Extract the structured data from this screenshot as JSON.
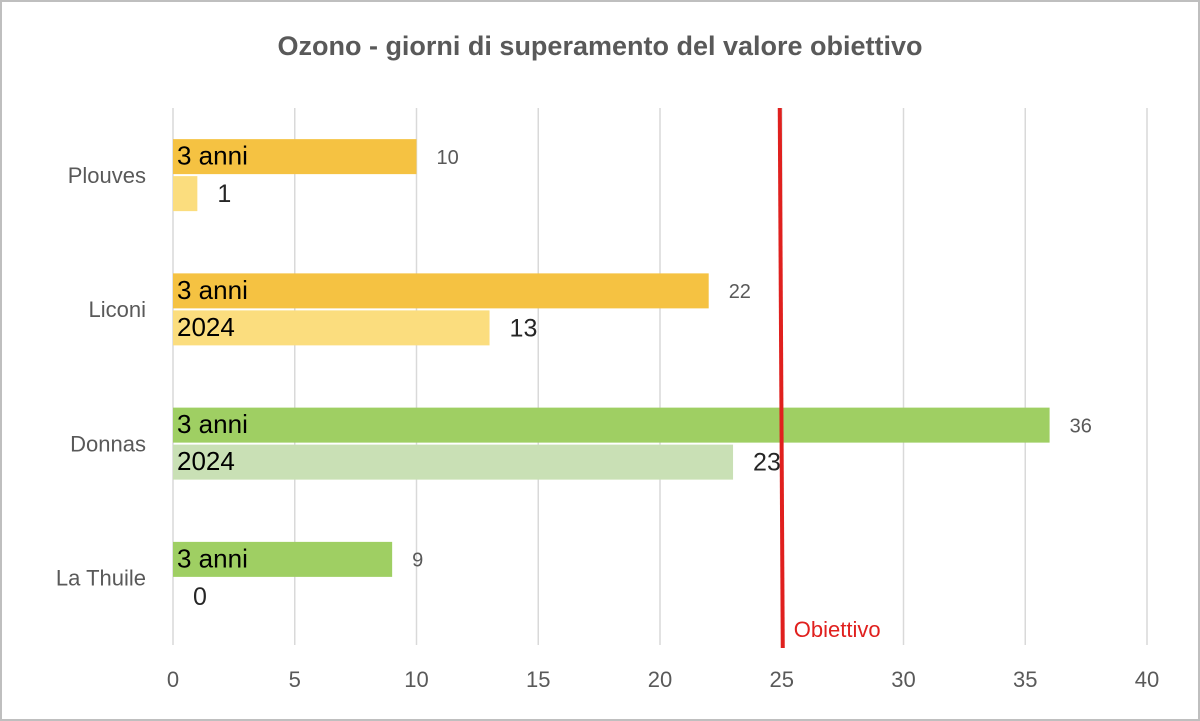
{
  "chart_data": {
    "type": "bar",
    "orientation": "horizontal",
    "title": "Ozono - giorni di superamento del valore obiettivo",
    "categories": [
      "Plouves",
      "Liconi",
      "Donnas",
      "La Thuile"
    ],
    "series": [
      {
        "name": "3 anni",
        "colors": [
          "#f5c242",
          "#f5c242",
          "#9fcf63",
          "#9fcf63"
        ],
        "values": [
          10,
          22,
          36,
          9
        ]
      },
      {
        "name": "2024",
        "colors": [
          "#fbdd7e",
          "#fbdd7e",
          "#c9e0b5",
          "#c9e0b5"
        ],
        "values": [
          1,
          13,
          23,
          0
        ]
      }
    ],
    "xlim": [
      0,
      40
    ],
    "xticks": [
      0,
      5,
      10,
      15,
      20,
      25,
      30,
      35,
      40
    ],
    "grid": true,
    "reference_line": {
      "value": 25,
      "label": "Obiettivo",
      "color": "#e0201e"
    }
  }
}
